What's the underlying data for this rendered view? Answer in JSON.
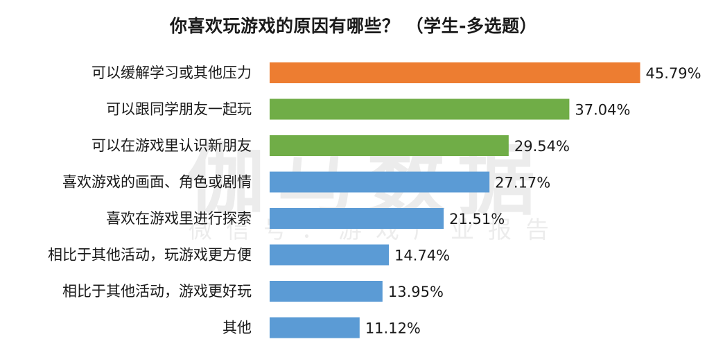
{
  "title": "你喜欢玩游戏的原因有哪些？ （学生-多选题）",
  "watermark": {
    "main": "伽马数据",
    "sub": "微信号：游戏产业报告"
  },
  "chart_data": {
    "type": "bar",
    "orientation": "horizontal",
    "title": "你喜欢玩游戏的原因有哪些？ （学生-多选题）",
    "categories": [
      "可以缓解学习或其他压力",
      "可以跟同学朋友一起玩",
      "可以在游戏里认识新朋友",
      "喜欢游戏的画面、角色或剧情",
      "喜欢在游戏里进行探索",
      "相比于其他活动，玩游戏更方便",
      "相比于其他活动，游戏更好玩",
      "其他"
    ],
    "values": [
      45.79,
      37.04,
      29.54,
      27.17,
      21.51,
      14.74,
      13.95,
      11.12
    ],
    "value_labels": [
      "45.79%",
      "37.04%",
      "29.54%",
      "27.17%",
      "21.51%",
      "14.74%",
      "13.95%",
      "11.12%"
    ],
    "unit": "%",
    "bar_colors": [
      "#ED7D31",
      "#70AD47",
      "#70AD47",
      "#5B9BD5",
      "#5B9BD5",
      "#5B9BD5",
      "#5B9BD5",
      "#5B9BD5"
    ],
    "xlim": [
      0,
      46
    ],
    "grid": false,
    "legend": "none"
  }
}
